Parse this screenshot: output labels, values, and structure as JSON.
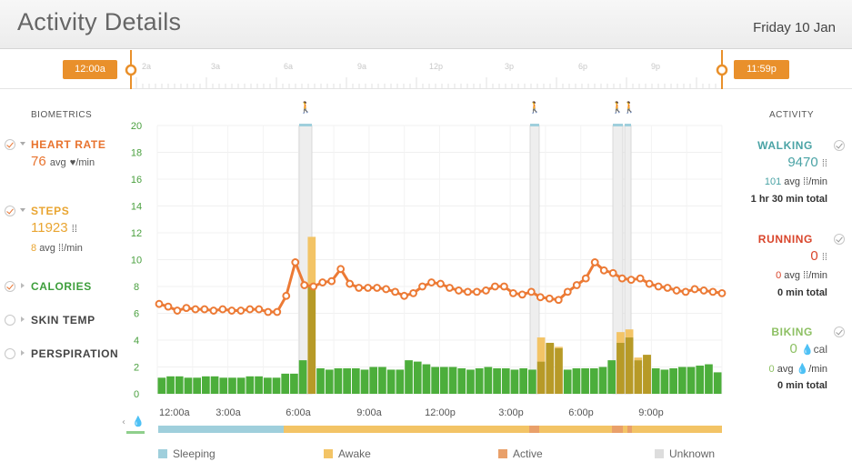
{
  "header": {
    "title": "Activity Details",
    "date": "Friday 10 Jan"
  },
  "timeline": {
    "start_label": "12:00a",
    "end_label": "11:59p",
    "ticks": [
      "2a",
      "3a",
      "6a",
      "9a",
      "12p",
      "3p",
      "6p",
      "9p"
    ]
  },
  "biometrics": {
    "heading": "BIOMETRICS",
    "heart_rate": {
      "name": "HEART RATE",
      "value": "76",
      "unit": "avg",
      "per": "/min",
      "color": "#e8732e"
    },
    "steps": {
      "name": "STEPS",
      "value": "11923",
      "avg": "8",
      "avg_unit": "avg",
      "per": "/min",
      "color": "#e9a531"
    },
    "calories": {
      "name": "CALORIES",
      "color": "#3d9e3b"
    },
    "skin_temp": {
      "name": "SKIN TEMP"
    },
    "perspiration": {
      "name": "PERSPIRATION"
    }
  },
  "activity": {
    "heading": "ACTIVITY",
    "walking": {
      "name": "WALKING",
      "value": "9470",
      "avg": "101",
      "avg_unit": "avg",
      "per": "/min",
      "total": "1 hr 30 min total",
      "color": "#4aa3a5"
    },
    "running": {
      "name": "RUNNING",
      "value": "0",
      "avg": "0",
      "avg_unit": "avg",
      "per": "/min",
      "total": "0 min total",
      "color": "#d9452b"
    },
    "biking": {
      "name": "BIKING",
      "value": "0",
      "unit": "cal",
      "avg": "0",
      "avg_unit": "avg",
      "per": "/min",
      "total": "0 min total",
      "color": "#8dc063"
    }
  },
  "legend": [
    {
      "label": "Sleeping",
      "color": "#9fcfdc"
    },
    {
      "label": "Awake",
      "color": "#f3c466"
    },
    {
      "label": "Active",
      "color": "#e9a06a"
    },
    {
      "label": "Unknown",
      "color": "#dddddd"
    }
  ],
  "chart_data": {
    "type": "bar",
    "y_ticks": [
      "0",
      "2",
      "4",
      "6",
      "8",
      "10",
      "12",
      "14",
      "16",
      "18",
      "20"
    ],
    "ylim": [
      0,
      20
    ],
    "x_ticks": [
      "12:00a",
      "3:00a",
      "6:00a",
      "9:00a",
      "12:00p",
      "3:00p",
      "6:00p",
      "9:00p"
    ],
    "calories_bars": [
      1.2,
      1.3,
      1.3,
      1.2,
      1.2,
      1.3,
      1.3,
      1.2,
      1.2,
      1.2,
      1.3,
      1.3,
      1.2,
      1.2,
      1.5,
      1.5,
      2.5,
      8.0,
      1.9,
      1.8,
      1.9,
      1.9,
      1.9,
      1.8,
      2.0,
      2.0,
      1.8,
      1.8,
      2.5,
      2.4,
      2.2,
      2.0,
      2.0,
      2.0,
      1.9,
      1.8,
      1.9,
      2.0,
      1.9,
      1.9,
      1.8,
      1.9,
      1.8,
      2.4,
      3.8,
      3.4,
      1.8,
      1.9,
      1.9,
      1.9,
      2.0,
      2.5,
      3.8,
      4.2,
      2.5,
      2.9,
      1.9,
      1.8,
      1.9,
      2.0,
      2.0,
      2.1,
      2.2,
      1.6
    ],
    "steps_bars": [
      0,
      0,
      0,
      0,
      0,
      0,
      0,
      0,
      0,
      0,
      0,
      0,
      0,
      0,
      0,
      0,
      0,
      11.7,
      0,
      0,
      0,
      0,
      0,
      0,
      0,
      0,
      0,
      0,
      0,
      0,
      0,
      0,
      0,
      0,
      0,
      0,
      0,
      0,
      0,
      0,
      0,
      0,
      0,
      4.2,
      3.7,
      3.5,
      0,
      0,
      0,
      0,
      0,
      0,
      4.6,
      4.8,
      2.7,
      2.9,
      0,
      0,
      0,
      0,
      0,
      0,
      0,
      0
    ],
    "heart_rate": [
      6.7,
      6.5,
      6.2,
      6.4,
      6.3,
      6.3,
      6.2,
      6.3,
      6.2,
      6.2,
      6.3,
      6.3,
      6.1,
      6.1,
      7.3,
      9.8,
      8.1,
      8.0,
      8.3,
      8.4,
      9.3,
      8.2,
      7.9,
      7.9,
      7.9,
      7.8,
      7.6,
      7.3,
      7.5,
      8.0,
      8.3,
      8.2,
      7.9,
      7.7,
      7.6,
      7.6,
      7.7,
      8.0,
      8.0,
      7.5,
      7.4,
      7.6,
      7.2,
      7.1,
      7.0,
      7.6,
      8.1,
      8.6,
      9.8,
      9.2,
      9.0,
      8.6,
      8.5,
      8.6,
      8.2,
      8.0,
      7.9,
      7.7,
      7.6,
      7.8,
      7.7,
      7.6,
      7.5
    ]
  }
}
